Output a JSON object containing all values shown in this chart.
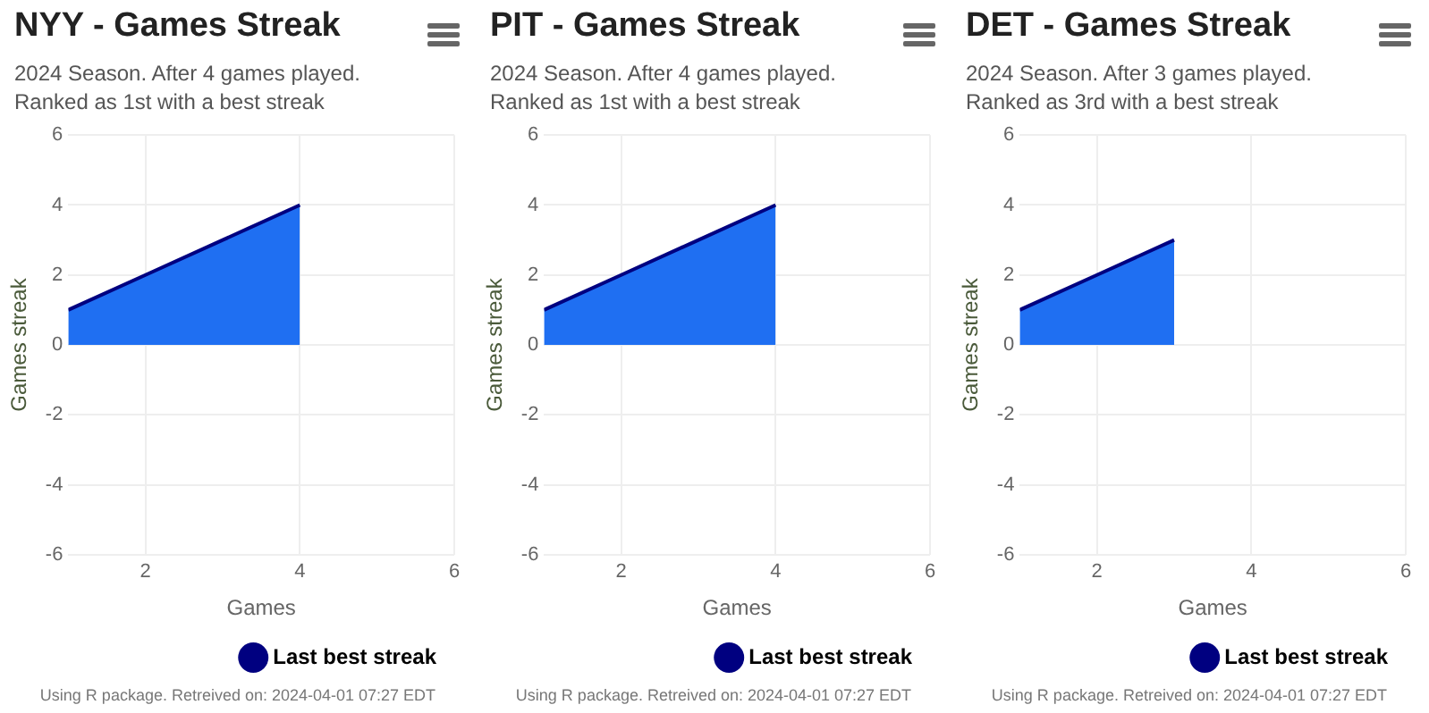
{
  "chart_data": [
    {
      "type": "area",
      "title": "NYY - Games Streak",
      "subtitle": "2024 Season. After 4 games played.\nRanked as 1st with a best streak",
      "xlabel": "Games",
      "ylabel": "Games streak",
      "x": [
        1,
        2,
        3,
        4
      ],
      "series": [
        {
          "name": "Last best streak",
          "color": "#000080",
          "values": [
            1,
            2,
            3,
            4
          ]
        }
      ],
      "xlim": [
        1,
        6
      ],
      "xticks": [
        2,
        4,
        6
      ],
      "ylim": [
        -6,
        6
      ],
      "yticks": [
        -6,
        -4,
        -2,
        0,
        2,
        4,
        6
      ],
      "grid": true,
      "legend": "bottom",
      "annotations": [
        "Using R package. Retreived on: 2024-04-01 07:27 EDT"
      ]
    },
    {
      "type": "area",
      "title": "PIT - Games Streak",
      "subtitle": "2024 Season. After 4 games played.\nRanked as 1st with a best streak",
      "xlabel": "Games",
      "ylabel": "Games streak",
      "x": [
        1,
        2,
        3,
        4
      ],
      "series": [
        {
          "name": "Last best streak",
          "color": "#000080",
          "values": [
            1,
            2,
            3,
            4
          ]
        }
      ],
      "xlim": [
        1,
        6
      ],
      "xticks": [
        2,
        4,
        6
      ],
      "ylim": [
        -6,
        6
      ],
      "yticks": [
        -6,
        -4,
        -2,
        0,
        2,
        4,
        6
      ],
      "grid": true,
      "legend": "bottom",
      "annotations": [
        "Using R package. Retreived on: 2024-04-01 07:27 EDT"
      ]
    },
    {
      "type": "area",
      "title": "DET - Games Streak",
      "subtitle": "2024 Season. After 3 games played.\nRanked as 3rd with a best streak",
      "xlabel": "Games",
      "ylabel": "Games streak",
      "x": [
        1,
        2,
        3
      ],
      "series": [
        {
          "name": "Last best streak",
          "color": "#000080",
          "values": [
            1,
            2,
            3
          ]
        }
      ],
      "xlim": [
        1,
        6
      ],
      "xticks": [
        2,
        4,
        6
      ],
      "ylim": [
        -6,
        6
      ],
      "yticks": [
        -6,
        -4,
        -2,
        0,
        2,
        4,
        6
      ],
      "grid": true,
      "legend": "bottom",
      "annotations": [
        "Using R package. Retreived on: 2024-04-01 07:27 EDT"
      ]
    }
  ]
}
